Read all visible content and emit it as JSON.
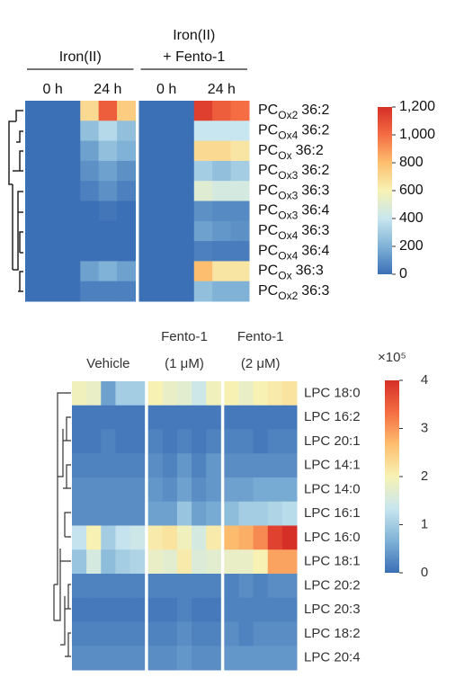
{
  "chart_data": [
    {
      "type": "heatmap",
      "groups": [
        {
          "name": [
            "Iron(II)"
          ],
          "subgroups": [
            "0 h",
            "24 h"
          ]
        },
        {
          "name": [
            "Iron(II)",
            "+ Fento-1"
          ],
          "subgroups": [
            "0 h",
            "24 h"
          ]
        }
      ],
      "rows": [
        {
          "label": "PC",
          "sub": "Ox2",
          "tail": "36:2"
        },
        {
          "label": "PC",
          "sub": "Ox4",
          "tail": "36:2"
        },
        {
          "label": "PC",
          "sub": "Ox",
          "tail": "36:2"
        },
        {
          "label": "PC",
          "sub": "Ox3",
          "tail": "36:2"
        },
        {
          "label": "PC",
          "sub": "Ox3",
          "tail": "36:3"
        },
        {
          "label": "PC",
          "sub": "Ox3",
          "tail": "36:4"
        },
        {
          "label": "PC",
          "sub": "Ox4",
          "tail": "36:3"
        },
        {
          "label": "PC",
          "sub": "Ox4",
          "tail": "36:4"
        },
        {
          "label": "PC",
          "sub": "Ox",
          "tail": "36:3"
        },
        {
          "label": "PC",
          "sub": "Ox2",
          "tail": "36:3"
        }
      ],
      "values": [
        [
          0,
          0,
          0,
          700,
          1050,
          750,
          0,
          0,
          0,
          1150,
          1050,
          1000
        ],
        [
          0,
          0,
          0,
          250,
          350,
          250,
          0,
          0,
          0,
          400,
          400,
          400
        ],
        [
          0,
          0,
          0,
          150,
          250,
          200,
          0,
          0,
          0,
          700,
          700,
          650
        ],
        [
          0,
          0,
          0,
          100,
          150,
          100,
          0,
          0,
          0,
          300,
          250,
          300
        ],
        [
          0,
          0,
          0,
          50,
          100,
          50,
          0,
          0,
          0,
          500,
          450,
          450
        ],
        [
          0,
          0,
          0,
          0,
          20,
          0,
          0,
          0,
          0,
          100,
          80,
          80
        ],
        [
          0,
          0,
          0,
          0,
          0,
          0,
          0,
          0,
          0,
          150,
          120,
          100
        ],
        [
          0,
          0,
          0,
          0,
          0,
          0,
          0,
          0,
          0,
          50,
          40,
          40
        ],
        [
          0,
          0,
          0,
          150,
          200,
          150,
          0,
          0,
          0,
          800,
          650,
          650
        ],
        [
          0,
          0,
          0,
          50,
          50,
          50,
          0,
          0,
          0,
          250,
          200,
          200
        ]
      ],
      "colorscale": [
        "#3b6fb6",
        "#7fb2d6",
        "#c8e6ef",
        "#f7f2b4",
        "#fdbf6f",
        "#f46d43",
        "#d62f27"
      ],
      "zlim": [
        0,
        1200
      ],
      "zticks": [
        0,
        200,
        400,
        600,
        800,
        {
          "value": 1000,
          "label": "1,000"
        },
        {
          "value": 1200,
          "label": "1,200"
        }
      ]
    },
    {
      "type": "heatmap",
      "groups": [
        {
          "name": [
            "Vehicle"
          ]
        },
        {
          "name": [
            "Fento-1",
            "(1 μM)"
          ]
        },
        {
          "name": [
            "Fento-1",
            "(2 μM)"
          ]
        }
      ],
      "rows": [
        "LPC 18:0",
        "LPC 16:2",
        "LPC 20:1",
        "LPC 14:1",
        "LPC 14:0",
        "LPC 16:1",
        "LPC 16:0",
        "LPC 18:1",
        "LPC 20:2",
        "LPC 20:3",
        "LPC 18:2",
        "LPC 20:4"
      ],
      "values": [
        [
          1.9,
          1.8,
          0.5,
          1.0,
          1.0,
          2.0,
          1.8,
          1.7,
          1.4,
          1.9,
          2.0,
          1.8,
          2.0,
          2.1,
          2.2
        ],
        [
          0.1,
          0.1,
          0.1,
          0.1,
          0.1,
          0.1,
          0.1,
          0.1,
          0.1,
          0.1,
          0.1,
          0.1,
          0.1,
          0.1,
          0.1
        ],
        [
          0.1,
          0.1,
          0.2,
          0.1,
          0.1,
          0.2,
          0.1,
          0.2,
          0.1,
          0.2,
          0.2,
          0.2,
          0.1,
          0.2,
          0.2
        ],
        [
          0.2,
          0.2,
          0.2,
          0.2,
          0.2,
          0.3,
          0.2,
          0.4,
          0.2,
          0.4,
          0.3,
          0.3,
          0.3,
          0.3,
          0.3
        ],
        [
          0.3,
          0.3,
          0.3,
          0.3,
          0.3,
          0.4,
          0.3,
          0.5,
          0.3,
          0.4,
          0.5,
          0.5,
          0.6,
          0.6,
          0.6
        ],
        [
          0.3,
          0.3,
          0.3,
          0.3,
          0.3,
          0.5,
          0.5,
          0.9,
          0.5,
          0.6,
          0.8,
          1.0,
          1.0,
          1.1,
          1.2
        ],
        [
          1.3,
          2.0,
          1.0,
          1.3,
          1.4,
          2.1,
          2.2,
          1.9,
          1.5,
          2.1,
          2.7,
          2.8,
          3.1,
          3.8,
          4.0
        ],
        [
          0.9,
          1.5,
          0.8,
          1.0,
          1.1,
          1.8,
          1.7,
          2.1,
          1.6,
          1.7,
          1.8,
          1.8,
          2.0,
          2.9,
          2.9
        ],
        [
          0.2,
          0.2,
          0.2,
          0.2,
          0.2,
          0.2,
          0.2,
          0.2,
          0.2,
          0.2,
          0.2,
          0.3,
          0.2,
          0.3,
          0.3
        ],
        [
          0.1,
          0.1,
          0.1,
          0.1,
          0.1,
          0.1,
          0.1,
          0.2,
          0.1,
          0.1,
          0.2,
          0.2,
          0.2,
          0.2,
          0.2
        ],
        [
          0.2,
          0.2,
          0.2,
          0.2,
          0.2,
          0.2,
          0.2,
          0.3,
          0.2,
          0.2,
          0.3,
          0.2,
          0.3,
          0.3,
          0.3
        ],
        [
          0.3,
          0.3,
          0.3,
          0.3,
          0.3,
          0.3,
          0.3,
          0.4,
          0.3,
          0.3,
          0.4,
          0.4,
          0.4,
          0.4,
          0.4
        ]
      ],
      "colorscale": [
        "#3b6fb6",
        "#7fb2d6",
        "#c8e6ef",
        "#f7f2b4",
        "#fdbf6f",
        "#f46d43",
        "#d62f27"
      ],
      "zlim": [
        0,
        4
      ],
      "zticks": [
        0,
        1,
        2,
        3,
        4
      ],
      "zlabel": "×10⁵"
    }
  ]
}
